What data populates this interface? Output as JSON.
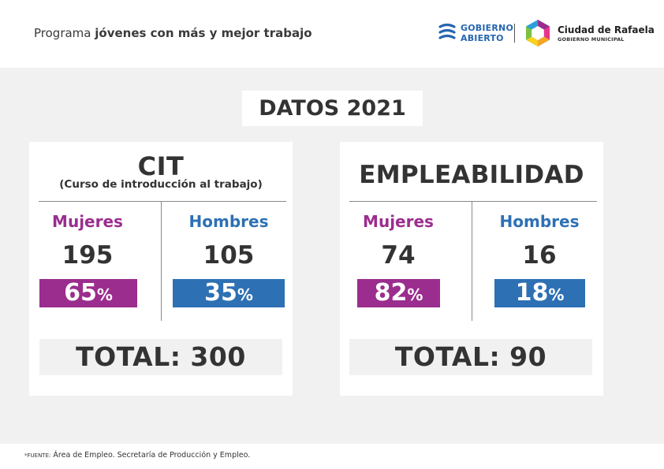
{
  "header": {
    "title_prefix": "Programa",
    "title_bold": "jóvenes con más y mejor trabajo",
    "logo_gobierno_line1": "GOBIERNO",
    "logo_gobierno_line2": "ABIERTO",
    "logo_city_name": "Ciudad de Rafaela",
    "logo_city_sub": "GOBIERNO MUNICIPAL"
  },
  "main": {
    "heading": "DATOS 2021",
    "cards": [
      {
        "title": "CIT",
        "subtitle": "(Curso de introducción al trabajo)",
        "women_label": "Mujeres",
        "women_value": "195",
        "women_pct": "65",
        "men_label": "Hombres",
        "men_value": "105",
        "men_pct": "35",
        "total": "TOTAL: 300"
      },
      {
        "title": "EMPLEABILIDAD",
        "women_label": "Mujeres",
        "women_value": "74",
        "women_pct": "82",
        "men_label": "Hombres",
        "men_value": "16",
        "men_pct": "18",
        "total": "TOTAL: 90"
      }
    ],
    "percent_sign": "%"
  },
  "footer": {
    "source_key": "*FUENTE:",
    "source_text": "Área de Empleo. Secretaría de Producción y Empleo."
  },
  "colors": {
    "women": "#9b2d8e",
    "men": "#2d70b4",
    "background": "#f1f1f1"
  },
  "icons": [
    "gobierno-abierto-logo-icon",
    "ciudad-de-rafaela-logo-icon"
  ]
}
